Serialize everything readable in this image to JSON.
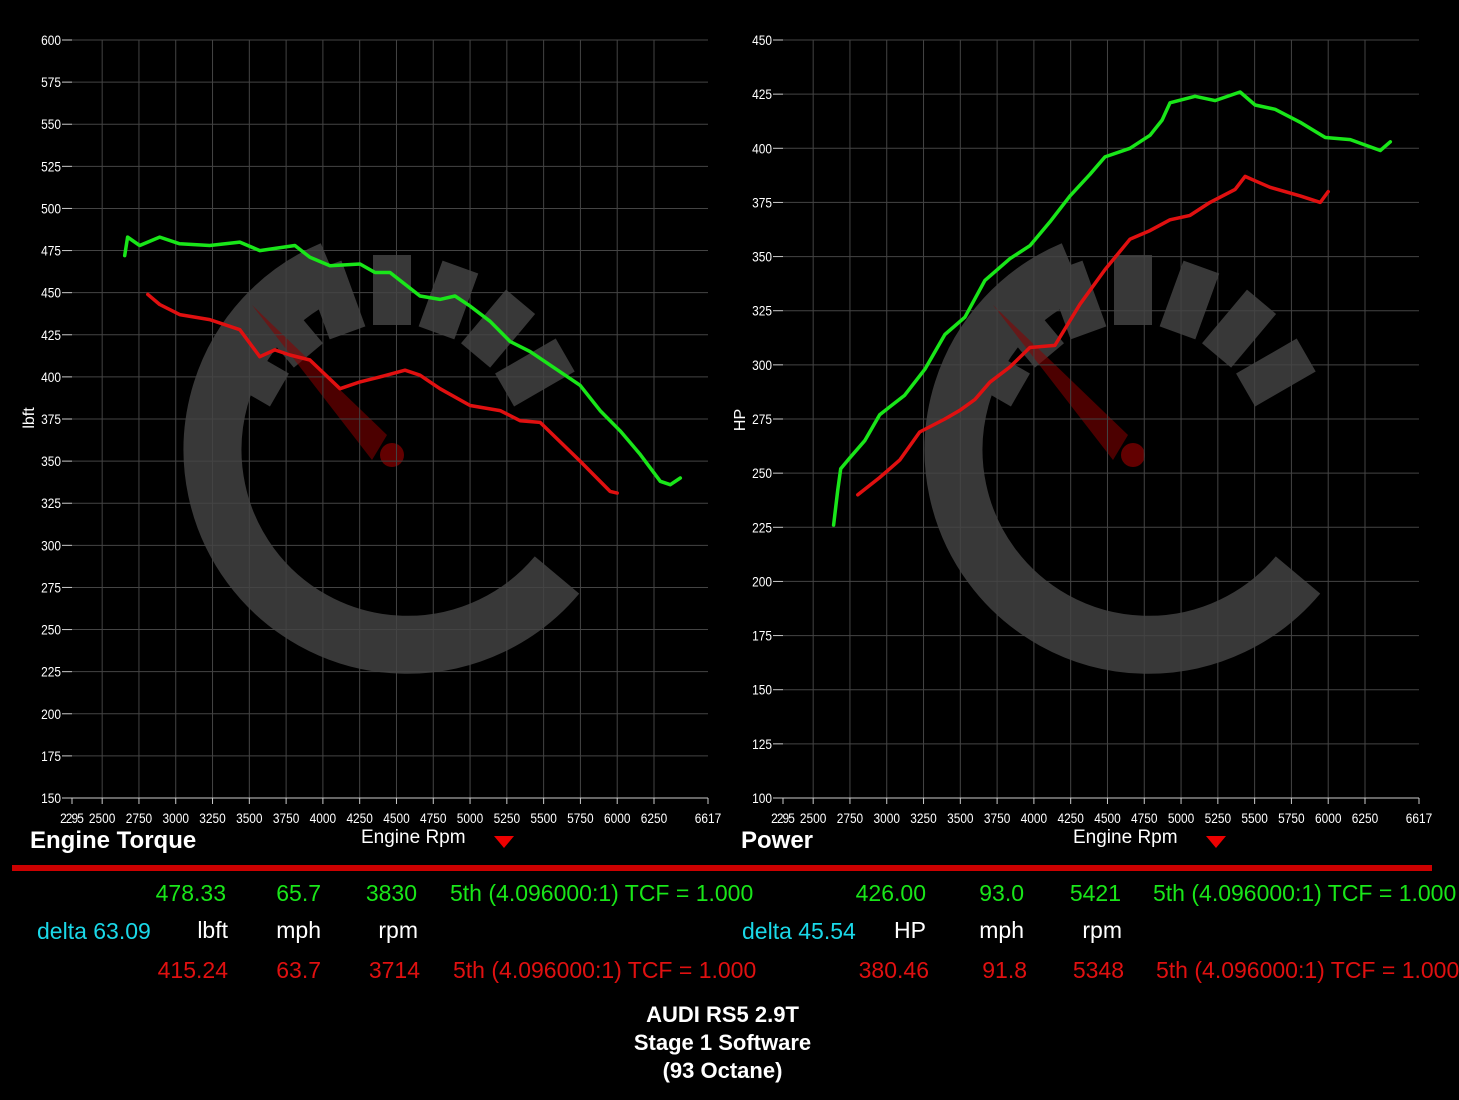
{
  "colors": {
    "baseline": "#e01010",
    "tuned": "#19e619",
    "delta": "#1ad8e8",
    "divider": "#cc0000"
  },
  "chart_data": [
    {
      "type": "line",
      "title": "Engine Torque",
      "xlabel": "Engine Rpm",
      "ylabel": "lbft",
      "xlim": [
        2295,
        6617
      ],
      "ylim": [
        150,
        600
      ],
      "x_ticks": [
        "2295",
        "2500",
        "2750",
        "3000",
        "3250",
        "3500",
        "3750",
        "4000",
        "4250",
        "4500",
        "4750",
        "5000",
        "5250",
        "5500",
        "5750",
        "6000",
        "6250",
        "6617"
      ],
      "y_ticks": [
        "600",
        "575",
        "550",
        "525",
        "500",
        "475",
        "450",
        "425",
        "400",
        "375",
        "350",
        "325",
        "300",
        "275",
        "250",
        "225",
        "200",
        "175",
        "150"
      ],
      "grid": true,
      "series": [
        {
          "color": "#19e619",
          "x": [
            2653,
            2673,
            2755,
            2891,
            3027,
            3231,
            3435,
            3571,
            3810,
            3912,
            4048,
            4252,
            4354,
            4456,
            4660,
            4796,
            4898,
            5000,
            5136,
            5272,
            5408,
            5612,
            5748,
            5884,
            6020,
            6156,
            6293,
            6361,
            6429
          ],
          "y": [
            472,
            483,
            478,
            483,
            479,
            478,
            480,
            475,
            478,
            471,
            466,
            467,
            462,
            462,
            448,
            446,
            448,
            442,
            433,
            421,
            415,
            403,
            395,
            380,
            368,
            354,
            338,
            336,
            340
          ]
        },
        {
          "color": "#e01010",
          "x": [
            2810,
            2891,
            3027,
            3231,
            3435,
            3571,
            3673,
            3776,
            3912,
            4116,
            4252,
            4388,
            4558,
            4660,
            4796,
            5000,
            5204,
            5340,
            5476,
            5748,
            5952,
            6000
          ],
          "y": [
            449,
            443,
            437,
            434,
            428,
            412,
            416,
            413,
            410,
            393,
            397,
            400,
            404,
            401,
            393,
            383,
            380,
            374,
            373,
            350,
            332,
            331
          ]
        }
      ]
    },
    {
      "type": "line",
      "title": "Power",
      "xlabel": "Engine Rpm",
      "ylabel": "HP",
      "xlim": [
        2295,
        6617
      ],
      "ylim": [
        100,
        450
      ],
      "x_ticks": [
        "2295",
        "2500",
        "2750",
        "3000",
        "3250",
        "3500",
        "3750",
        "4000",
        "4250",
        "4500",
        "4750",
        "5000",
        "5250",
        "5500",
        "5750",
        "6000",
        "6250",
        "6617"
      ],
      "y_ticks": [
        "450",
        "425",
        "400",
        "375",
        "350",
        "325",
        "300",
        "275",
        "250",
        "225",
        "200",
        "175",
        "150",
        "125",
        "100"
      ],
      "grid": true,
      "series": [
        {
          "color": "#19e619",
          "x": [
            2639,
            2667,
            2687,
            2748,
            2850,
            2952,
            3122,
            3259,
            3395,
            3531,
            3667,
            3837,
            3973,
            4109,
            4245,
            4381,
            4483,
            4653,
            4789,
            4871,
            4925,
            5095,
            5231,
            5401,
            5503,
            5639,
            5810,
            5980,
            6150,
            6354,
            6422
          ],
          "y": [
            226,
            242,
            252,
            257,
            265,
            277,
            286,
            298,
            314,
            322,
            339,
            349,
            355,
            366,
            378,
            388,
            396,
            400,
            406,
            413,
            421,
            424,
            422,
            426,
            420,
            418,
            412,
            405,
            404,
            399,
            403
          ]
        },
        {
          "color": "#e01010",
          "x": [
            2803,
            2952,
            3088,
            3224,
            3395,
            3497,
            3599,
            3701,
            3837,
            3973,
            4143,
            4313,
            4483,
            4653,
            4789,
            4925,
            5061,
            5197,
            5367,
            5435,
            5503,
            5605,
            5810,
            5946,
            6000
          ],
          "y": [
            240,
            248,
            256,
            269,
            275,
            279,
            284,
            292,
            299,
            308,
            309,
            328,
            344,
            358,
            362,
            367,
            369,
            375,
            381,
            387,
            385,
            382,
            378,
            375,
            380
          ]
        }
      ]
    }
  ],
  "torque_readout": {
    "tuned": {
      "value": "478.33",
      "speed": "65.7",
      "rpm": "3830",
      "gear": "5th (4.096000:1) TCF = 1.000"
    },
    "delta": "delta 63.09",
    "units": {
      "value": "lbft",
      "speed": "mph",
      "rpm": "rpm"
    },
    "stock": {
      "value": "415.24",
      "speed": "63.7",
      "rpm": "3714",
      "gear": "5th (4.096000:1) TCF = 1.000"
    }
  },
  "power_readout": {
    "tuned": {
      "value": "426.00",
      "speed": "93.0",
      "rpm": "5421",
      "gear": "5th (4.096000:1) TCF = 1.000"
    },
    "delta": "delta 45.54",
    "units": {
      "value": "HP",
      "speed": "mph",
      "rpm": "rpm"
    },
    "stock": {
      "value": "380.46",
      "speed": "91.8",
      "rpm": "5348",
      "gear": "5th (4.096000:1) TCF = 1.000"
    }
  },
  "footer": {
    "line1": "AUDI RS5 2.9T",
    "line2": "Stage 1 Software",
    "line3": "(93 Octane)"
  }
}
